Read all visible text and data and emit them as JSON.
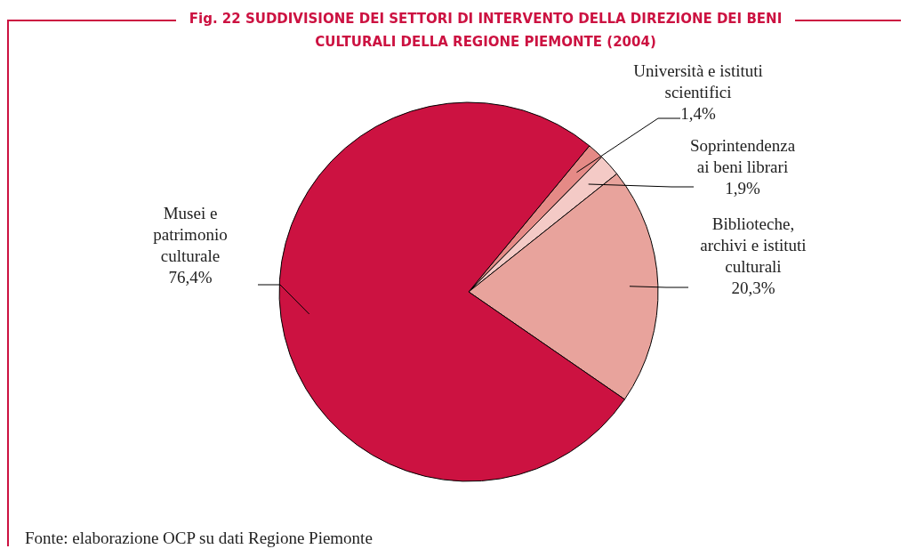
{
  "chart_data": {
    "type": "pie",
    "title": "Fig. 22 SUDDIVISIONE DEI SETTORI DI INTERVENTO DELLA DIREZIONE DEI BENI CULTURALI DELLA REGIONE PIEMONTE (2004)",
    "categories": [
      "Università e istituti scientifici",
      "Soprintendenza ai beni librari",
      "Biblioteche, archivi e istituti culturali",
      "Musei e patrimonio culturale"
    ],
    "values": [
      1.4,
      1.9,
      20.3,
      76.4
    ],
    "value_labels": [
      "1,4%",
      "1,9%",
      "20,3%",
      "76,4%"
    ],
    "colors": [
      "#e58a86",
      "#f4cac6",
      "#e8a39c",
      "#cc1241"
    ],
    "annotations": [
      "Fonte: elaborazione OCP su dati Regione Piemonte"
    ]
  }
}
